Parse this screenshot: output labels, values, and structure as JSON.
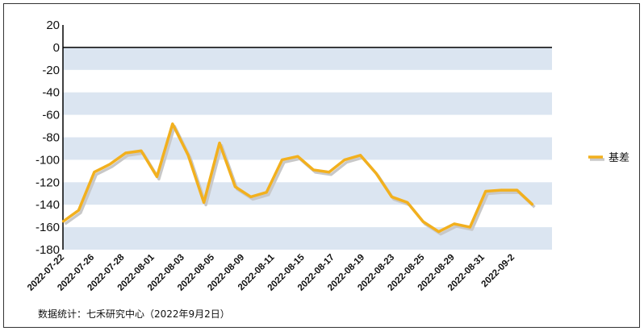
{
  "chart_data": {
    "type": "line",
    "title": "",
    "xlabel": "",
    "ylabel": "",
    "ylim": [
      -180,
      20
    ],
    "yticks": [
      20,
      0,
      -20,
      -40,
      -60,
      -80,
      -100,
      -120,
      -140,
      -160,
      -180
    ],
    "xtick_labels": [
      "2022-07-22",
      "2022-07-26",
      "2022-07-28",
      "2022-08-01",
      "2022-08-03",
      "2022-08-05",
      "2022-08-09",
      "2022-08-11",
      "2022-08-15",
      "2022-08-17",
      "2022-08-19",
      "2022-08-23",
      "2022-08-25",
      "2022-08-29",
      "2022-08-31",
      "2022-09-2"
    ],
    "legend_position": "right",
    "series": [
      {
        "name": "基差",
        "color": "#f2b01e",
        "values": [
          -155,
          -145,
          -111,
          -104,
          -94,
          -92,
          -115,
          -68,
          -96,
          -138,
          -85,
          -124,
          -133,
          -129,
          -100,
          -97,
          -109,
          -111,
          -100,
          -96,
          -112,
          -133,
          -138,
          -155,
          -164,
          -157,
          -160,
          -128,
          -127,
          -127,
          -140
        ]
      }
    ]
  },
  "footnote": "数据统计：七禾研究中心（2022年9月2日）"
}
